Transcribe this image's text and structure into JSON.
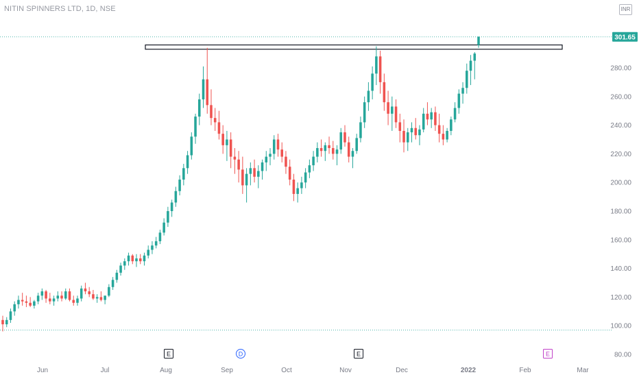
{
  "header": {
    "title": "NITIN SPINNERS LTD, 1D, NSE",
    "currency": "INR"
  },
  "chart_data": {
    "type": "candlestick",
    "symbol": "NITIN SPINNERS LTD",
    "interval": "1D",
    "exchange": "NSE",
    "last_price": "301.65",
    "last_price_value": 301.65,
    "ylim": [
      80,
      315
    ],
    "y_ticks": [
      "80.00",
      "100.00",
      "120.00",
      "140.00",
      "160.00",
      "180.00",
      "200.00",
      "220.00",
      "240.00",
      "260.00",
      "280.00"
    ],
    "x_ticks": [
      "Jun",
      "Jul",
      "Aug",
      "Sep",
      "Oct",
      "Nov",
      "Dec",
      "2022",
      "Feb",
      "Mar"
    ],
    "resistance_zone": [
      293,
      296
    ],
    "support_line": 97,
    "events": [
      {
        "label": "E",
        "type": "earnings",
        "month": "Aug"
      },
      {
        "label": "D",
        "type": "dividend",
        "month": "Sep"
      },
      {
        "label": "E",
        "type": "earnings",
        "month": "Nov"
      },
      {
        "label": "E",
        "type": "earnings-upcoming",
        "month": "Feb"
      }
    ],
    "ohlc": [
      [
        104,
        107,
        96,
        101
      ],
      [
        101,
        106,
        99,
        104
      ],
      [
        104,
        112,
        102,
        110
      ],
      [
        110,
        117,
        107,
        115
      ],
      [
        115,
        121,
        112,
        118
      ],
      [
        118,
        123,
        114,
        117
      ],
      [
        117,
        121,
        113,
        116
      ],
      [
        116,
        120,
        113,
        114
      ],
      [
        114,
        118,
        112,
        117
      ],
      [
        117,
        123,
        115,
        121
      ],
      [
        121,
        126,
        118,
        124
      ],
      [
        124,
        125,
        116,
        119
      ],
      [
        119,
        123,
        115,
        117
      ],
      [
        117,
        121,
        114,
        119
      ],
      [
        119,
        124,
        117,
        121
      ],
      [
        121,
        124,
        117,
        119
      ],
      [
        119,
        126,
        118,
        124
      ],
      [
        124,
        126,
        117,
        118
      ],
      [
        118,
        121,
        114,
        116
      ],
      [
        116,
        121,
        114,
        119
      ],
      [
        119,
        128,
        117,
        126
      ],
      [
        126,
        130,
        122,
        124
      ],
      [
        124,
        127,
        120,
        122
      ],
      [
        122,
        125,
        118,
        119
      ],
      [
        119,
        122,
        116,
        120
      ],
      [
        120,
        124,
        117,
        118
      ],
      [
        118,
        121,
        115,
        121
      ],
      [
        121,
        129,
        120,
        127
      ],
      [
        127,
        134,
        125,
        132
      ],
      [
        132,
        139,
        130,
        137
      ],
      [
        137,
        144,
        135,
        142
      ],
      [
        142,
        147,
        139,
        145
      ],
      [
        145,
        151,
        142,
        149
      ],
      [
        149,
        150,
        143,
        145
      ],
      [
        145,
        150,
        141,
        147
      ],
      [
        147,
        150,
        143,
        145
      ],
      [
        145,
        151,
        142,
        149
      ],
      [
        149,
        156,
        147,
        153
      ],
      [
        153,
        159,
        150,
        156
      ],
      [
        156,
        162,
        154,
        159
      ],
      [
        159,
        167,
        157,
        165
      ],
      [
        165,
        175,
        163,
        172
      ],
      [
        172,
        183,
        169,
        180
      ],
      [
        180,
        188,
        176,
        186
      ],
      [
        186,
        197,
        183,
        194
      ],
      [
        194,
        205,
        191,
        202
      ],
      [
        202,
        213,
        198,
        210
      ],
      [
        210,
        222,
        206,
        219
      ],
      [
        219,
        235,
        216,
        232
      ],
      [
        232,
        248,
        227,
        246
      ],
      [
        246,
        262,
        240,
        258
      ],
      [
        258,
        281,
        252,
        272
      ],
      [
        272,
        294,
        248,
        254
      ],
      [
        254,
        265,
        240,
        245
      ],
      [
        245,
        252,
        236,
        242
      ],
      [
        242,
        250,
        230,
        234
      ],
      [
        234,
        240,
        220,
        226
      ],
      [
        226,
        236,
        215,
        230
      ],
      [
        230,
        235,
        210,
        218
      ],
      [
        218,
        224,
        206,
        216
      ],
      [
        216,
        222,
        200,
        209
      ],
      [
        209,
        218,
        192,
        198
      ],
      [
        198,
        210,
        186,
        206
      ],
      [
        206,
        214,
        198,
        210
      ],
      [
        210,
        216,
        200,
        204
      ],
      [
        204,
        212,
        196,
        208
      ],
      [
        208,
        216,
        202,
        214
      ],
      [
        214,
        222,
        208,
        218
      ],
      [
        218,
        224,
        212,
        220
      ],
      [
        220,
        233,
        216,
        230
      ],
      [
        230,
        234,
        218,
        223
      ],
      [
        223,
        228,
        214,
        218
      ],
      [
        218,
        222,
        206,
        211
      ],
      [
        211,
        216,
        198,
        202
      ],
      [
        202,
        206,
        187,
        192
      ],
      [
        192,
        200,
        186,
        196
      ],
      [
        196,
        204,
        192,
        200
      ],
      [
        200,
        210,
        196,
        207
      ],
      [
        207,
        216,
        203,
        212
      ],
      [
        212,
        222,
        208,
        218
      ],
      [
        218,
        228,
        214,
        224
      ],
      [
        224,
        230,
        218,
        222
      ],
      [
        222,
        228,
        215,
        226
      ],
      [
        226,
        232,
        220,
        224
      ],
      [
        224,
        229,
        216,
        220
      ],
      [
        220,
        226,
        212,
        223
      ],
      [
        223,
        238,
        220,
        235
      ],
      [
        235,
        240,
        225,
        228
      ],
      [
        228,
        232,
        214,
        218
      ],
      [
        218,
        224,
        210,
        222
      ],
      [
        222,
        234,
        220,
        231
      ],
      [
        231,
        246,
        228,
        242
      ],
      [
        242,
        260,
        238,
        256
      ],
      [
        256,
        270,
        250,
        264
      ],
      [
        264,
        281,
        258,
        276
      ],
      [
        276,
        295,
        268,
        288
      ],
      [
        288,
        292,
        262,
        270
      ],
      [
        270,
        276,
        250,
        256
      ],
      [
        256,
        264,
        240,
        248
      ],
      [
        248,
        260,
        236,
        253
      ],
      [
        253,
        258,
        238,
        242
      ],
      [
        242,
        248,
        228,
        236
      ],
      [
        236,
        244,
        221,
        228
      ],
      [
        228,
        238,
        222,
        235
      ],
      [
        235,
        242,
        228,
        238
      ],
      [
        238,
        245,
        230,
        233
      ],
      [
        233,
        240,
        226,
        237
      ],
      [
        237,
        252,
        235,
        248
      ],
      [
        248,
        256,
        240,
        244
      ],
      [
        244,
        252,
        238,
        249
      ],
      [
        249,
        253,
        236,
        240
      ],
      [
        240,
        248,
        228,
        234
      ],
      [
        234,
        240,
        226,
        230
      ],
      [
        230,
        238,
        228,
        236
      ],
      [
        236,
        246,
        233,
        244
      ],
      [
        244,
        256,
        242,
        252
      ],
      [
        252,
        265,
        248,
        262
      ],
      [
        262,
        270,
        255,
        266
      ],
      [
        266,
        283,
        262,
        278
      ],
      [
        278,
        289,
        268,
        285
      ],
      [
        285,
        291,
        272,
        290
      ],
      [
        296,
        302,
        294,
        301.65
      ]
    ]
  }
}
